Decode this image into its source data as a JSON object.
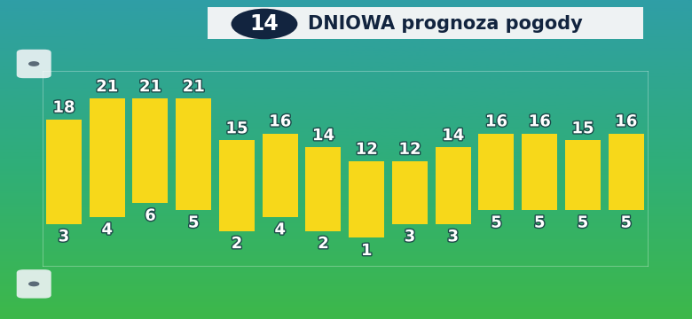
{
  "chart_data": {
    "type": "range_bar",
    "title": "14 DNIOWA prognoza pogody",
    "categories": [
      null,
      null,
      null,
      null,
      null,
      null,
      null,
      null,
      null,
      null,
      null,
      null,
      null,
      null
    ],
    "highs": [
      18,
      21,
      21,
      21,
      15,
      16,
      14,
      12,
      12,
      14,
      16,
      16,
      15,
      16
    ],
    "lows": [
      3,
      4,
      6,
      5,
      2,
      4,
      2,
      1,
      3,
      3,
      5,
      5,
      5,
      5
    ],
    "color": "#f7d81a",
    "ylim": [
      -3,
      25
    ],
    "yticks": [],
    "data_labels": true,
    "tick_labels": false,
    "grid": false
  }
}
